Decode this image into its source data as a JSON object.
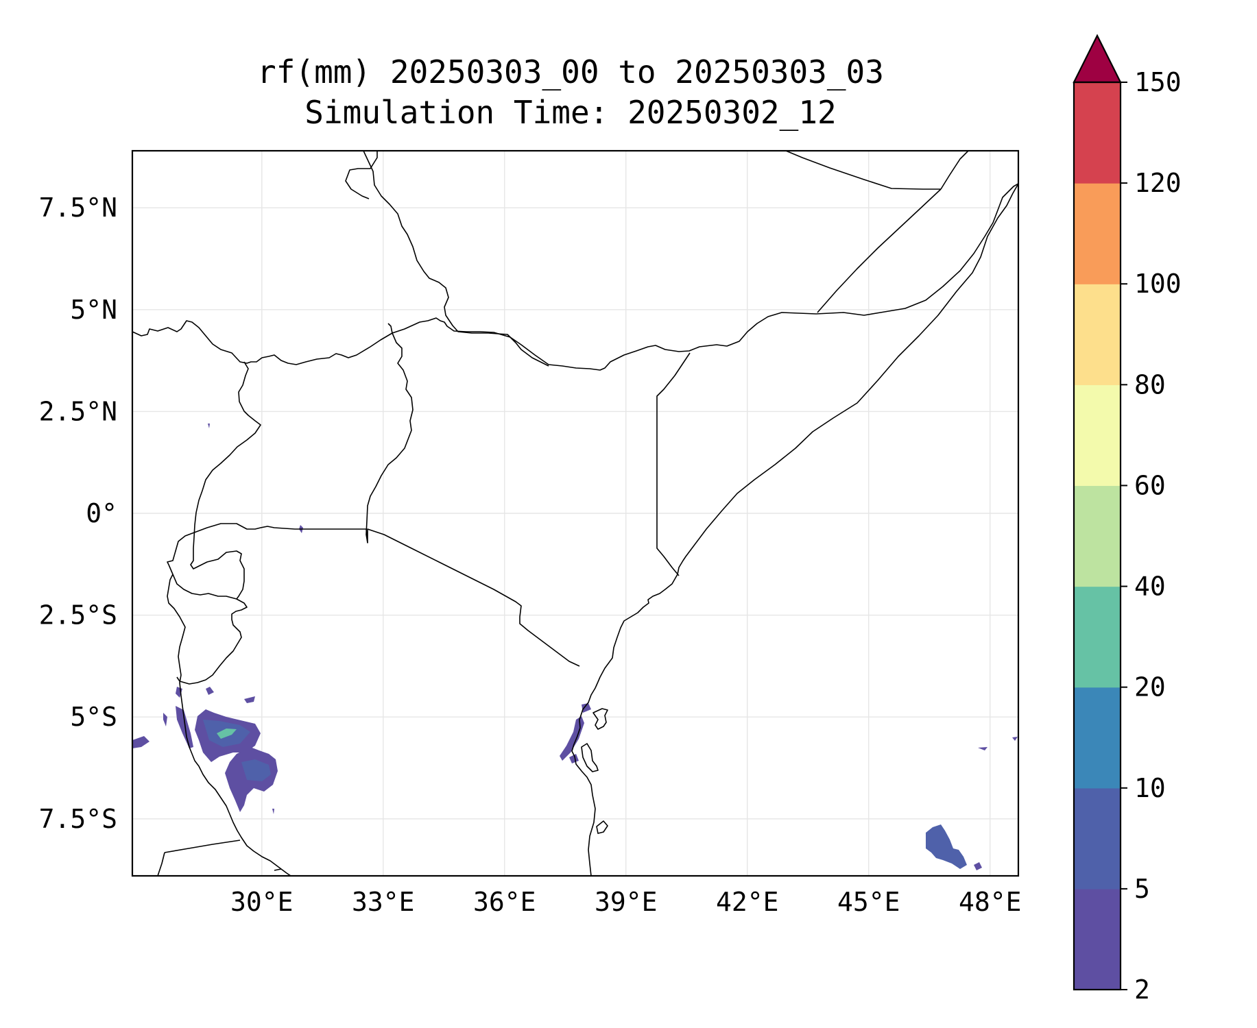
{
  "title": {
    "line1": "rf(mm) 20250303_00 to 20250303_03",
    "line2": "Simulation Time: 20250302_12"
  },
  "map": {
    "lon_range": [
      26.8,
      48.7
    ],
    "lat_range": [
      -8.9,
      8.9
    ],
    "x_ticks": [
      {
        "lon": 30,
        "label": "30°E"
      },
      {
        "lon": 33,
        "label": "33°E"
      },
      {
        "lon": 36,
        "label": "36°E"
      },
      {
        "lon": 39,
        "label": "39°E"
      },
      {
        "lon": 42,
        "label": "42°E"
      },
      {
        "lon": 45,
        "label": "45°E"
      },
      {
        "lon": 48,
        "label": "48°E"
      }
    ],
    "y_ticks": [
      {
        "lat": 7.5,
        "label": "7.5°N"
      },
      {
        "lat": 5,
        "label": "5°N"
      },
      {
        "lat": 2.5,
        "label": "2.5°N"
      },
      {
        "lat": 0,
        "label": "0°"
      },
      {
        "lat": -2.5,
        "label": "2.5°S"
      },
      {
        "lat": -5,
        "label": "5°S"
      },
      {
        "lat": -7.5,
        "label": "7.5°S"
      }
    ],
    "gridlines": true
  },
  "colorbar": {
    "levels": [
      "2",
      "5",
      "10",
      "20",
      "40",
      "60",
      "80",
      "100",
      "120",
      "150"
    ],
    "colors": [
      "#5e4fa2",
      "#4f61aa",
      "#3b87b8",
      "#66c2a5",
      "#bde3a0",
      "#f3faac",
      "#fddf8c",
      "#f99c59",
      "#d5424f"
    ],
    "extend_color": "#9e0142",
    "extend": "max"
  }
}
